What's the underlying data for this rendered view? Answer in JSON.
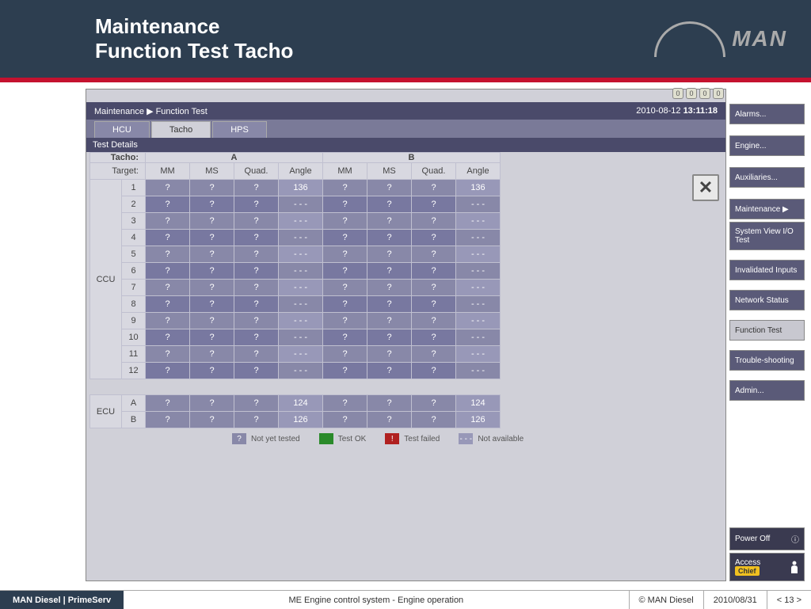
{
  "header": {
    "title_line1": "Maintenance",
    "title_line2": "Function Test Tacho",
    "logo_text": "MAN"
  },
  "status_icons": [
    "0",
    "0",
    "0",
    "0"
  ],
  "breadcrumb": {
    "path1": "Maintenance",
    "path2": "Function Test",
    "date": "2010-08-12",
    "time": "13:11:18"
  },
  "tabs": [
    {
      "label": "HCU",
      "active": false
    },
    {
      "label": "Tacho",
      "active": true
    },
    {
      "label": "HPS",
      "active": false
    }
  ],
  "section_title": "Test Details",
  "table": {
    "tacho_label": "Tacho:",
    "target_label": "Target:",
    "group_a": "A",
    "group_b": "B",
    "cols": [
      "MM",
      "MS",
      "Quad.",
      "Angle",
      "MM",
      "MS",
      "Quad.",
      "Angle"
    ],
    "ccu_label": "CCU",
    "ecu_label": "ECU",
    "ccu_rows": [
      {
        "n": "1",
        "a": [
          "?",
          "?",
          "?",
          "136"
        ],
        "b": [
          "?",
          "?",
          "?",
          "136"
        ]
      },
      {
        "n": "2",
        "a": [
          "?",
          "?",
          "?",
          "- - -"
        ],
        "b": [
          "?",
          "?",
          "?",
          "- - -"
        ]
      },
      {
        "n": "3",
        "a": [
          "?",
          "?",
          "?",
          "- - -"
        ],
        "b": [
          "?",
          "?",
          "?",
          "- - -"
        ]
      },
      {
        "n": "4",
        "a": [
          "?",
          "?",
          "?",
          "- - -"
        ],
        "b": [
          "?",
          "?",
          "?",
          "- - -"
        ]
      },
      {
        "n": "5",
        "a": [
          "?",
          "?",
          "?",
          "- - -"
        ],
        "b": [
          "?",
          "?",
          "?",
          "- - -"
        ]
      },
      {
        "n": "6",
        "a": [
          "?",
          "?",
          "?",
          "- - -"
        ],
        "b": [
          "?",
          "?",
          "?",
          "- - -"
        ]
      },
      {
        "n": "7",
        "a": [
          "?",
          "?",
          "?",
          "- - -"
        ],
        "b": [
          "?",
          "?",
          "?",
          "- - -"
        ]
      },
      {
        "n": "8",
        "a": [
          "?",
          "?",
          "?",
          "- - -"
        ],
        "b": [
          "?",
          "?",
          "?",
          "- - -"
        ]
      },
      {
        "n": "9",
        "a": [
          "?",
          "?",
          "?",
          "- - -"
        ],
        "b": [
          "?",
          "?",
          "?",
          "- - -"
        ]
      },
      {
        "n": "10",
        "a": [
          "?",
          "?",
          "?",
          "- - -"
        ],
        "b": [
          "?",
          "?",
          "?",
          "- - -"
        ]
      },
      {
        "n": "11",
        "a": [
          "?",
          "?",
          "?",
          "- - -"
        ],
        "b": [
          "?",
          "?",
          "?",
          "- - -"
        ]
      },
      {
        "n": "12",
        "a": [
          "?",
          "?",
          "?",
          "- - -"
        ],
        "b": [
          "?",
          "?",
          "?",
          "- - -"
        ]
      }
    ],
    "ecu_rows": [
      {
        "n": "A",
        "a": [
          "?",
          "?",
          "?",
          "124"
        ],
        "b": [
          "?",
          "?",
          "?",
          "124"
        ]
      },
      {
        "n": "B",
        "a": [
          "?",
          "?",
          "?",
          "126"
        ],
        "b": [
          "?",
          "?",
          "?",
          "126"
        ]
      }
    ]
  },
  "legend": {
    "not_tested": "Not yet tested",
    "ok": "Test OK",
    "failed": "Test failed",
    "na": "Not available",
    "q": "?",
    "dash": "- - -"
  },
  "sidebar": {
    "alarms": "Alarms...",
    "engine": "Engine...",
    "aux": "Auxiliaries...",
    "maint": "Maintenance ▶",
    "sysview": "System View I/O Test",
    "inval": "Invalidated Inputs",
    "net": "Network Status",
    "func": "Function Test",
    "trouble": "Trouble-shooting",
    "admin": "Admin...",
    "power": "Power Off",
    "access": "Access",
    "chief": "Chief"
  },
  "footer": {
    "logo": "MAN Diesel | PrimeServ",
    "title": "ME Engine control system - Engine operation",
    "copyright": "© MAN Diesel",
    "date": "2010/08/31",
    "page": "< 13 >"
  },
  "colors": {
    "header_bg": "#2d3e50",
    "red": "#c4122f",
    "panel_bg": "#d0d0d8",
    "bar_bg": "#4a4a6a",
    "cell_bg": "#8888a8"
  }
}
